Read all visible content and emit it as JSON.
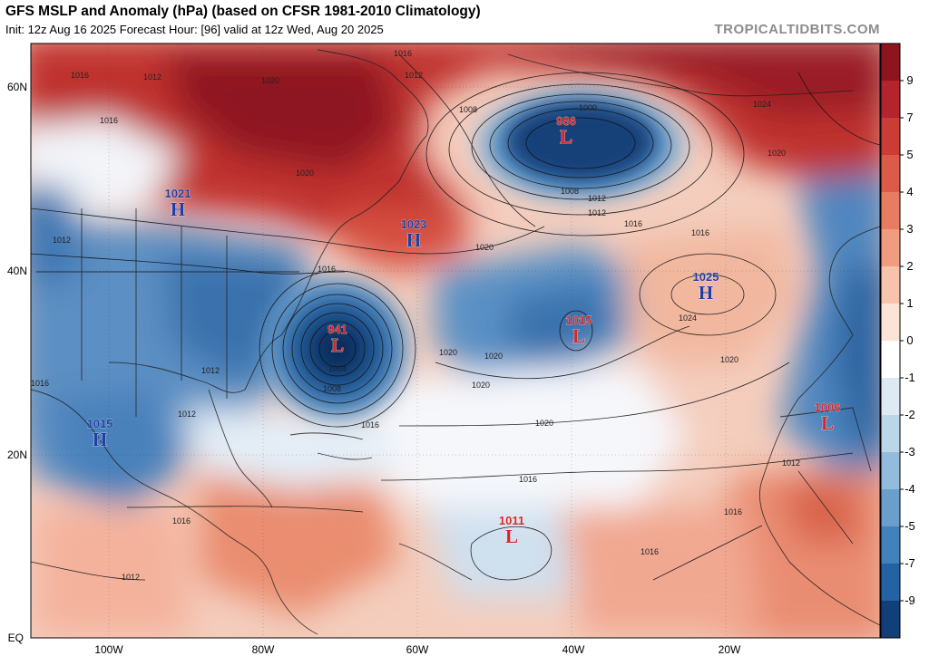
{
  "header": {
    "title": "GFS MSLP and Anomaly (hPa) (based on CFSR 1981-2010 Climatology)",
    "subtitle": "Init: 12z Aug 16 2025   Forecast Hour: [96]   valid at 12z Wed, Aug 20 2025",
    "brand": "TROPICALTIDBITS.COM"
  },
  "axes": {
    "lat_labels": [
      {
        "text": "60N"
      },
      {
        "text": "40N"
      },
      {
        "text": "20N"
      },
      {
        "text": "EQ"
      }
    ],
    "lon_labels": [
      {
        "text": "100W"
      },
      {
        "text": "80W"
      },
      {
        "text": "60W"
      },
      {
        "text": "40W"
      },
      {
        "text": "20W"
      }
    ]
  },
  "colorbar": {
    "labels": [
      "9",
      "7",
      "5",
      "4",
      "3",
      "2",
      "1",
      "0",
      "-1",
      "-2",
      "-3",
      "-4",
      "-5",
      "-7",
      "-9"
    ],
    "colors": [
      "#8e1420",
      "#b3242c",
      "#cc3c37",
      "#dc5a48",
      "#e77c60",
      "#f09c7e",
      "#f7c3ac",
      "#fbe3d6",
      "#ffffff",
      "#dde9f3",
      "#bcd6e9",
      "#93bcdc",
      "#6a9fcc",
      "#4381bb",
      "#2462a3",
      "#123f78"
    ]
  },
  "pressure_systems": [
    {
      "type": "H",
      "value": "1021",
      "color": "#1f3fa3"
    },
    {
      "type": "H",
      "value": "1023",
      "color": "#1f3fa3"
    },
    {
      "type": "L",
      "value": "986",
      "color": "#d62728"
    },
    {
      "type": "L",
      "value": "941",
      "color": "#d62728"
    },
    {
      "type": "L",
      "value": "1015",
      "color": "#d62728"
    },
    {
      "type": "H",
      "value": "1025",
      "color": "#1f3fa3"
    },
    {
      "type": "H",
      "value": "1015",
      "color": "#1f3fa3"
    },
    {
      "type": "L",
      "value": "1006",
      "color": "#d62728"
    },
    {
      "type": "L",
      "value": "1011",
      "color": "#d62728"
    }
  ],
  "isobar_labels": [
    "1016",
    "1012",
    "1020",
    "1016",
    "1012",
    "1016",
    "1020",
    "1008",
    "1012",
    "1016",
    "1020",
    "1016",
    "1020",
    "1016",
    "1012",
    "1008",
    "1004",
    "1020",
    "1024",
    "1020",
    "1016",
    "1008",
    "1012",
    "1000",
    "1020",
    "1024",
    "1020",
    "1020",
    "1016",
    "1016",
    "1012",
    "1016",
    "1016",
    "1012",
    "1016",
    "1012",
    "1012"
  ]
}
